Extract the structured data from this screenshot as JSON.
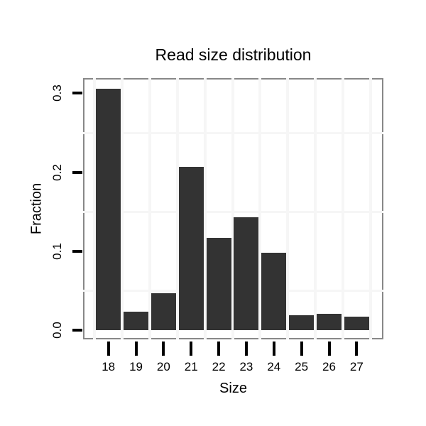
{
  "chart_data": {
    "type": "bar",
    "title": "Read size distribution",
    "xlabel": "Size",
    "ylabel": "Fraction",
    "categories": [
      "18",
      "19",
      "20",
      "21",
      "22",
      "23",
      "24",
      "25",
      "26",
      "27"
    ],
    "values": [
      0.306,
      0.023,
      0.047,
      0.207,
      0.117,
      0.143,
      0.098,
      0.019,
      0.021,
      0.017
    ],
    "ytick_labels": [
      "0.0",
      "0.1",
      "0.2",
      "0.3"
    ],
    "ytick_values": [
      0.0,
      0.1,
      0.2,
      0.3
    ],
    "ylim": [
      -0.012,
      0.32
    ],
    "minor_gridlines_y": [
      0.05,
      0.15,
      0.25
    ],
    "grid": "minor gridlines only, very light gray; vertical minors at category midpoints",
    "legend": "none",
    "bar_color": "#333333",
    "panel_border_color": "#888888",
    "gridline_color": "#f6f6f6",
    "tick_color": "#000000"
  }
}
